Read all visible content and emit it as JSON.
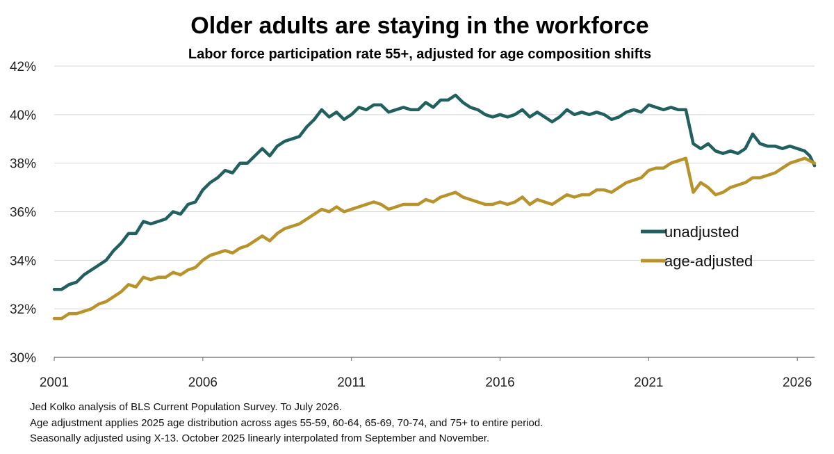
{
  "chart_data": {
    "type": "line",
    "title": "Older adults are staying in the workforce",
    "subtitle": "Labor force participation rate 55+, adjusted for age composition shifts",
    "xlabel": "",
    "ylabel": "",
    "xlim": [
      2001.0,
      2026.58
    ],
    "ylim": [
      30,
      42
    ],
    "x_ticks": [
      "2001",
      "2006",
      "2011",
      "2016",
      "2021",
      "2026"
    ],
    "y_ticks": [
      "30%",
      "32%",
      "34%",
      "36%",
      "38%",
      "40%",
      "42%"
    ],
    "grid": true,
    "legend_position": "right",
    "series": [
      {
        "name": "unadjusted",
        "color": "#21605f",
        "points": [
          [
            2001.0,
            32.8
          ],
          [
            2001.25,
            32.8
          ],
          [
            2001.5,
            33.0
          ],
          [
            2001.75,
            33.1
          ],
          [
            2002.0,
            33.4
          ],
          [
            2002.25,
            33.6
          ],
          [
            2002.5,
            33.8
          ],
          [
            2002.75,
            34.0
          ],
          [
            2003.0,
            34.4
          ],
          [
            2003.25,
            34.7
          ],
          [
            2003.5,
            35.1
          ],
          [
            2003.75,
            35.1
          ],
          [
            2004.0,
            35.6
          ],
          [
            2004.25,
            35.5
          ],
          [
            2004.5,
            35.6
          ],
          [
            2004.75,
            35.7
          ],
          [
            2005.0,
            36.0
          ],
          [
            2005.25,
            35.9
          ],
          [
            2005.5,
            36.3
          ],
          [
            2005.75,
            36.4
          ],
          [
            2006.0,
            36.9
          ],
          [
            2006.25,
            37.2
          ],
          [
            2006.5,
            37.4
          ],
          [
            2006.75,
            37.7
          ],
          [
            2007.0,
            37.6
          ],
          [
            2007.25,
            38.0
          ],
          [
            2007.5,
            38.0
          ],
          [
            2007.75,
            38.3
          ],
          [
            2008.0,
            38.6
          ],
          [
            2008.25,
            38.3
          ],
          [
            2008.5,
            38.7
          ],
          [
            2008.75,
            38.9
          ],
          [
            2009.0,
            39.0
          ],
          [
            2009.25,
            39.1
          ],
          [
            2009.5,
            39.5
          ],
          [
            2009.75,
            39.8
          ],
          [
            2010.0,
            40.2
          ],
          [
            2010.25,
            39.9
          ],
          [
            2010.5,
            40.1
          ],
          [
            2010.75,
            39.8
          ],
          [
            2011.0,
            40.0
          ],
          [
            2011.25,
            40.3
          ],
          [
            2011.5,
            40.2
          ],
          [
            2011.75,
            40.4
          ],
          [
            2012.0,
            40.4
          ],
          [
            2012.25,
            40.1
          ],
          [
            2012.5,
            40.2
          ],
          [
            2012.75,
            40.3
          ],
          [
            2013.0,
            40.2
          ],
          [
            2013.25,
            40.2
          ],
          [
            2013.5,
            40.5
          ],
          [
            2013.75,
            40.3
          ],
          [
            2014.0,
            40.6
          ],
          [
            2014.25,
            40.6
          ],
          [
            2014.5,
            40.8
          ],
          [
            2014.75,
            40.5
          ],
          [
            2015.0,
            40.3
          ],
          [
            2015.25,
            40.2
          ],
          [
            2015.5,
            40.0
          ],
          [
            2015.75,
            39.9
          ],
          [
            2016.0,
            40.0
          ],
          [
            2016.25,
            39.9
          ],
          [
            2016.5,
            40.0
          ],
          [
            2016.75,
            40.2
          ],
          [
            2017.0,
            39.9
          ],
          [
            2017.25,
            40.1
          ],
          [
            2017.5,
            39.9
          ],
          [
            2017.75,
            39.7
          ],
          [
            2018.0,
            39.9
          ],
          [
            2018.25,
            40.2
          ],
          [
            2018.5,
            40.0
          ],
          [
            2018.75,
            40.1
          ],
          [
            2019.0,
            40.0
          ],
          [
            2019.25,
            40.1
          ],
          [
            2019.5,
            40.0
          ],
          [
            2019.75,
            39.8
          ],
          [
            2020.0,
            39.9
          ],
          [
            2020.25,
            40.1
          ],
          [
            2020.5,
            40.2
          ],
          [
            2020.75,
            40.1
          ],
          [
            2021.0,
            40.4
          ],
          [
            2021.25,
            40.3
          ],
          [
            2021.5,
            40.2
          ],
          [
            2021.75,
            40.3
          ],
          [
            2022.0,
            40.2
          ],
          [
            2022.25,
            40.2
          ],
          [
            2022.5,
            38.8
          ],
          [
            2022.75,
            38.6
          ],
          [
            2023.0,
            38.8
          ],
          [
            2023.25,
            38.5
          ],
          [
            2023.5,
            38.4
          ],
          [
            2023.75,
            38.5
          ],
          [
            2024.0,
            38.4
          ],
          [
            2024.25,
            38.6
          ],
          [
            2024.5,
            39.2
          ],
          [
            2024.75,
            38.8
          ],
          [
            2025.0,
            38.7
          ],
          [
            2025.25,
            38.7
          ],
          [
            2025.5,
            38.6
          ],
          [
            2025.75,
            38.7
          ],
          [
            2026.0,
            38.6
          ],
          [
            2026.25,
            38.5
          ],
          [
            2026.42,
            38.3
          ],
          [
            2026.58,
            37.9
          ]
        ]
      },
      {
        "name": "age-adjusted",
        "color": "#b8922a",
        "points": [
          [
            2001.0,
            31.6
          ],
          [
            2001.25,
            31.6
          ],
          [
            2001.5,
            31.8
          ],
          [
            2001.75,
            31.8
          ],
          [
            2002.0,
            31.9
          ],
          [
            2002.25,
            32.0
          ],
          [
            2002.5,
            32.2
          ],
          [
            2002.75,
            32.3
          ],
          [
            2003.0,
            32.5
          ],
          [
            2003.25,
            32.7
          ],
          [
            2003.5,
            33.0
          ],
          [
            2003.75,
            32.9
          ],
          [
            2004.0,
            33.3
          ],
          [
            2004.25,
            33.2
          ],
          [
            2004.5,
            33.3
          ],
          [
            2004.75,
            33.3
          ],
          [
            2005.0,
            33.5
          ],
          [
            2005.25,
            33.4
          ],
          [
            2005.5,
            33.6
          ],
          [
            2005.75,
            33.7
          ],
          [
            2006.0,
            34.0
          ],
          [
            2006.25,
            34.2
          ],
          [
            2006.5,
            34.3
          ],
          [
            2006.75,
            34.4
          ],
          [
            2007.0,
            34.3
          ],
          [
            2007.25,
            34.5
          ],
          [
            2007.5,
            34.6
          ],
          [
            2007.75,
            34.8
          ],
          [
            2008.0,
            35.0
          ],
          [
            2008.25,
            34.8
          ],
          [
            2008.5,
            35.1
          ],
          [
            2008.75,
            35.3
          ],
          [
            2009.0,
            35.4
          ],
          [
            2009.25,
            35.5
          ],
          [
            2009.5,
            35.7
          ],
          [
            2009.75,
            35.9
          ],
          [
            2010.0,
            36.1
          ],
          [
            2010.25,
            36.0
          ],
          [
            2010.5,
            36.2
          ],
          [
            2010.75,
            36.0
          ],
          [
            2011.0,
            36.1
          ],
          [
            2011.25,
            36.2
          ],
          [
            2011.5,
            36.3
          ],
          [
            2011.75,
            36.4
          ],
          [
            2012.0,
            36.3
          ],
          [
            2012.25,
            36.1
          ],
          [
            2012.5,
            36.2
          ],
          [
            2012.75,
            36.3
          ],
          [
            2013.0,
            36.3
          ],
          [
            2013.25,
            36.3
          ],
          [
            2013.5,
            36.5
          ],
          [
            2013.75,
            36.4
          ],
          [
            2014.0,
            36.6
          ],
          [
            2014.25,
            36.7
          ],
          [
            2014.5,
            36.8
          ],
          [
            2014.75,
            36.6
          ],
          [
            2015.0,
            36.5
          ],
          [
            2015.25,
            36.4
          ],
          [
            2015.5,
            36.3
          ],
          [
            2015.75,
            36.3
          ],
          [
            2016.0,
            36.4
          ],
          [
            2016.25,
            36.3
          ],
          [
            2016.5,
            36.4
          ],
          [
            2016.75,
            36.6
          ],
          [
            2017.0,
            36.3
          ],
          [
            2017.25,
            36.5
          ],
          [
            2017.5,
            36.4
          ],
          [
            2017.75,
            36.3
          ],
          [
            2018.0,
            36.5
          ],
          [
            2018.25,
            36.7
          ],
          [
            2018.5,
            36.6
          ],
          [
            2018.75,
            36.7
          ],
          [
            2019.0,
            36.7
          ],
          [
            2019.25,
            36.9
          ],
          [
            2019.5,
            36.9
          ],
          [
            2019.75,
            36.8
          ],
          [
            2020.0,
            37.0
          ],
          [
            2020.25,
            37.2
          ],
          [
            2020.5,
            37.3
          ],
          [
            2020.75,
            37.4
          ],
          [
            2021.0,
            37.7
          ],
          [
            2021.25,
            37.8
          ],
          [
            2021.5,
            37.8
          ],
          [
            2021.75,
            38.0
          ],
          [
            2022.0,
            38.1
          ],
          [
            2022.25,
            38.2
          ],
          [
            2022.5,
            36.8
          ],
          [
            2022.75,
            37.2
          ],
          [
            2023.0,
            37.0
          ],
          [
            2023.25,
            36.7
          ],
          [
            2023.5,
            36.8
          ],
          [
            2023.75,
            37.0
          ],
          [
            2024.0,
            37.1
          ],
          [
            2024.25,
            37.2
          ],
          [
            2024.5,
            37.4
          ],
          [
            2024.75,
            37.4
          ],
          [
            2025.0,
            37.5
          ],
          [
            2025.25,
            37.6
          ],
          [
            2025.5,
            37.8
          ],
          [
            2025.75,
            38.0
          ],
          [
            2026.0,
            38.1
          ],
          [
            2026.25,
            38.2
          ],
          [
            2026.42,
            38.1
          ],
          [
            2026.58,
            38.0
          ]
        ]
      }
    ]
  },
  "notes": [
    "Jed Kolko analysis of BLS Current Population Survey. To July 2026.",
    "Age adjustment applies 2025 age distribution across ages 55-59, 60-64, 65-69, 70-74, and 75+ to entire period.",
    "Seasonally adjusted using X-13. October 2025 linearly interpolated from September and November."
  ]
}
